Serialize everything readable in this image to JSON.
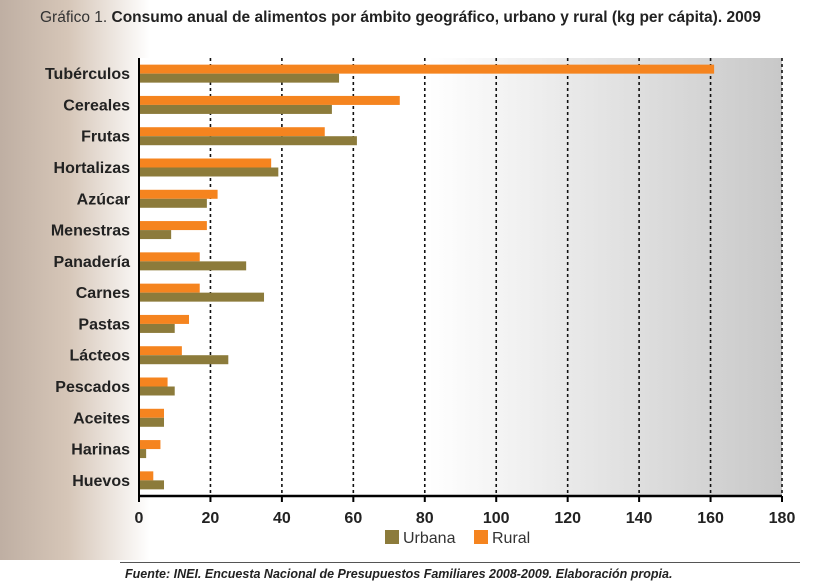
{
  "title": {
    "prefix": "Gráfico 1.",
    "text": "Consumo anual de alimentos por ámbito geográfico, urbano y rural (kg per cápita). 2009"
  },
  "source": "Fuente: INEI. Encuesta Nacional de Presupuestos Familiares 2008-2009. Elaboración propia.",
  "chart_data": {
    "type": "bar",
    "orientation": "horizontal",
    "title": "Gráfico 1. Consumo anual de alimentos por ámbito geográfico, urbano y rural (kg per cápita). 2009",
    "categories": [
      "Tubérculos",
      "Cereales",
      "Frutas",
      "Hortalizas",
      "Azúcar",
      "Menestras",
      "Panadería",
      "Carnes",
      "Pastas",
      "Lácteos",
      "Pescados",
      "Aceites",
      "Harinas",
      "Huevos"
    ],
    "series": [
      {
        "name": "Rural",
        "color": "#f5841f",
        "values": [
          161,
          73,
          52,
          37,
          22,
          19,
          17,
          17,
          14,
          12,
          8,
          7,
          6,
          4
        ]
      },
      {
        "name": "Urbana",
        "color": "#8c7b3b",
        "values": [
          56,
          54,
          61,
          39,
          19,
          9,
          30,
          35,
          10,
          25,
          10,
          7,
          2,
          7
        ]
      }
    ],
    "xlim": [
      0,
      180
    ],
    "xticks": [
      0,
      20,
      40,
      60,
      80,
      100,
      120,
      140,
      160,
      180
    ],
    "grid": "vertical dotted",
    "legend": {
      "placement": "bottom",
      "order": [
        "Urbana",
        "Rural"
      ]
    }
  }
}
